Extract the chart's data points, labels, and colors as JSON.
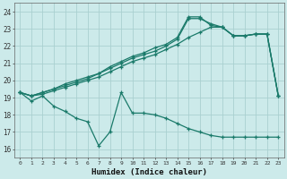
{
  "xlabel": "Humidex (Indice chaleur)",
  "bg_color": "#cceaea",
  "line_color": "#1a7a6a",
  "grid_color": "#b0d8d8",
  "xlim": [
    -0.5,
    23.5
  ],
  "ylim": [
    15.5,
    24.5
  ],
  "yticks": [
    16,
    17,
    18,
    19,
    20,
    21,
    22,
    23,
    24
  ],
  "xticks": [
    0,
    1,
    2,
    3,
    4,
    5,
    6,
    7,
    8,
    9,
    10,
    11,
    12,
    13,
    14,
    15,
    16,
    17,
    18,
    19,
    20,
    21,
    22,
    23
  ],
  "line1_x": [
    0,
    1,
    2,
    3,
    4,
    5,
    6,
    7,
    8,
    9,
    10,
    11,
    12,
    13,
    14,
    15,
    16,
    17,
    18,
    19,
    20,
    21,
    22,
    23
  ],
  "line1_y": [
    19.3,
    18.8,
    19.1,
    18.5,
    18.2,
    17.8,
    17.6,
    16.2,
    17.0,
    19.3,
    18.1,
    18.1,
    18.0,
    17.8,
    17.5,
    17.2,
    17.0,
    16.8,
    16.7,
    16.7,
    16.7,
    16.7,
    16.7,
    16.7
  ],
  "line2_x": [
    0,
    1,
    2,
    3,
    4,
    5,
    6,
    7,
    8,
    9,
    10,
    11,
    12,
    13,
    14,
    15,
    16,
    17,
    18,
    19,
    20,
    21,
    22,
    23
  ],
  "line2_y": [
    19.3,
    19.1,
    19.2,
    19.4,
    19.6,
    19.8,
    20.0,
    20.2,
    20.5,
    20.8,
    21.1,
    21.3,
    21.5,
    21.8,
    22.1,
    22.5,
    22.8,
    23.1,
    23.1,
    22.6,
    22.6,
    22.7,
    22.7,
    19.1
  ],
  "line3_x": [
    0,
    1,
    2,
    3,
    4,
    5,
    6,
    7,
    8,
    9,
    10,
    11,
    12,
    13,
    14,
    15,
    16,
    17,
    18,
    19,
    20,
    21,
    22,
    23
  ],
  "line3_y": [
    19.3,
    19.1,
    19.3,
    19.5,
    19.7,
    19.9,
    20.1,
    20.4,
    20.7,
    21.0,
    21.3,
    21.5,
    21.7,
    22.0,
    22.4,
    23.6,
    23.6,
    23.3,
    23.1,
    22.6,
    22.6,
    22.7,
    22.7,
    19.1
  ],
  "line4_x": [
    0,
    1,
    2,
    3,
    4,
    5,
    6,
    7,
    8,
    9,
    10,
    11,
    12,
    13,
    14,
    15,
    16,
    17,
    18,
    19,
    20,
    21,
    22,
    23
  ],
  "line4_y": [
    19.3,
    19.1,
    19.3,
    19.5,
    19.8,
    20.0,
    20.2,
    20.4,
    20.8,
    21.1,
    21.4,
    21.6,
    21.9,
    22.1,
    22.5,
    23.7,
    23.7,
    23.2,
    23.1,
    22.6,
    22.6,
    22.7,
    22.7,
    19.1
  ]
}
